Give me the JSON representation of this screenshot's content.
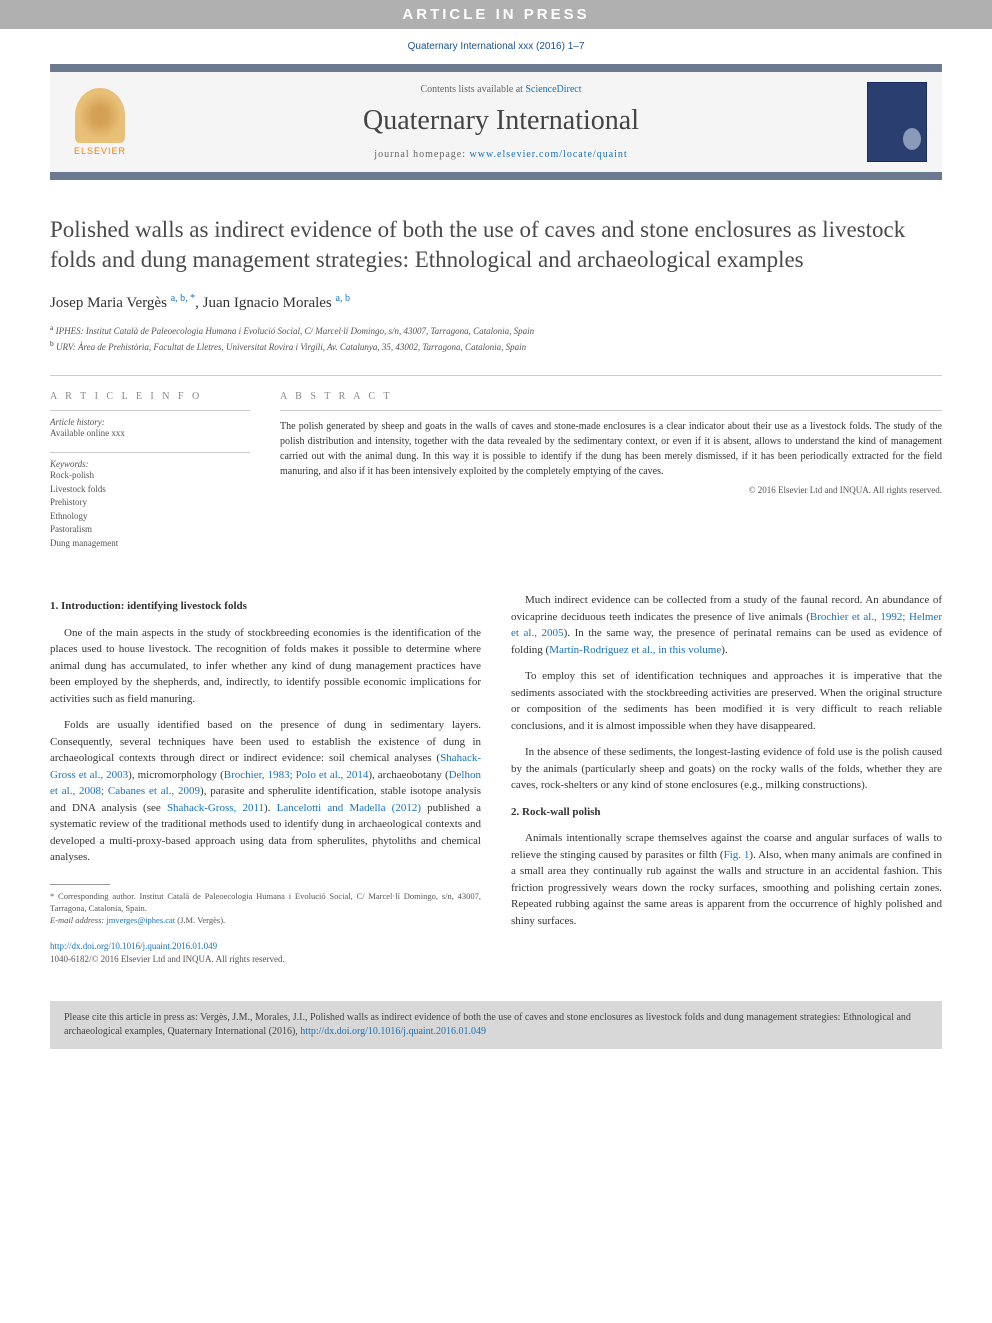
{
  "banner": "ARTICLE IN PRESS",
  "topCite": "Quaternary International xxx (2016) 1–7",
  "header": {
    "contentsPrefix": "Contents lists available at ",
    "contentsLink": "ScienceDirect",
    "journalName": "Quaternary International",
    "homepagePrefix": "journal homepage: ",
    "homepageUrl": "www.elsevier.com/locate/quaint",
    "publisherLogo": "ELSEVIER"
  },
  "title": "Polished walls as indirect evidence of both the use of caves and stone enclosures as livestock folds and dung management strategies: Ethnological and archaeological examples",
  "authors": {
    "a1name": "Josep Maria Vergès ",
    "a1sup": "a, b, *",
    "sep": ", ",
    "a2name": "Juan Ignacio Morales ",
    "a2sup": "a, b"
  },
  "affiliations": {
    "a": "IPHES: Institut Català de Paleoecologia Humana i Evolució Social, C/ Marcel·lí Domingo, s/n, 43007, Tarragona, Catalonia, Spain",
    "b": "URV: Àrea de Prehistòria, Facultat de Lletres, Universitat Rovira i Virgili, Av. Catalunya, 35, 43002, Tarragona, Catalonia, Spain"
  },
  "info": {
    "articleInfoHeading": "A R T I C L E   I N F O",
    "historyLabel": "Article history:",
    "historyText": "Available online xxx",
    "keywordsLabel": "Keywords:",
    "keywords": [
      "Rock-polish",
      "Livestock folds",
      "Prehistory",
      "Ethnology",
      "Pastoralism",
      "Dung management"
    ]
  },
  "abstract": {
    "heading": "A B S T R A C T",
    "text": "The polish generated by sheep and goats in the walls of caves and stone-made enclosures is a clear indicator about their use as a livestock folds. The study of the polish distribution and intensity, together with the data revealed by the sedimentary context, or even if it is absent, allows to understand the kind of management carried out with the animal dung. In this way it is possible to identify if the dung has been merely dismissed, if it has been periodically extracted for the field manuring, and also if it has been intensively exploited by the completely emptying of the caves.",
    "copyright": "© 2016 Elsevier Ltd and INQUA. All rights reserved."
  },
  "sections": {
    "s1heading": "1.  Introduction: identifying livestock folds",
    "s1p1": "One of the main aspects in the study of stockbreeding economies is the identification of the places used to house livestock. The recognition of folds makes it possible to determine where animal dung has accumulated, to infer whether any kind of dung management practices have been employed by the shepherds, and, indirectly, to identify possible economic implications for activities such as field manuring.",
    "s1p2a": "Folds are usually identified based on the presence of dung in sedimentary layers. Consequently, several techniques have been used to establish the existence of dung in archaeological contexts through direct or indirect evidence: soil chemical analyses (",
    "s1p2_r1": "Shahack-Gross et al., 2003",
    "s1p2b": "), micromorphology (",
    "s1p2_r2": "Brochier, 1983; Polo et al., 2014",
    "s1p2c": "), archaeobotany (",
    "s1p2_r3": "Delhon et al., 2008; Cabanes et al., 2009",
    "s1p2d": "), parasite and spherulite identification, stable isotope analysis and DNA analysis (see ",
    "s1p2_r4": "Shahack-Gross, 2011",
    "s1p2e": "). ",
    "s1p2_r5": "Lancelotti and Madella (2012)",
    "s1p2f": " published a systematic review of the traditional methods used to identify dung in archaeological contexts and developed a multi-proxy-based approach using data from spherulites, phytoliths and chemical analyses.",
    "s1p3a": "Much indirect evidence can be collected from a study of the faunal record. An abundance of ovicaprine deciduous teeth indicates the presence of live animals (",
    "s1p3_r1": "Brochier et al., 1992; Helmer et al., 2005",
    "s1p3b": "). In the same way, the presence of perinatal remains can be used as evidence of folding (",
    "s1p3_r2": "Martín-Rodríguez et al., in this volume",
    "s1p3c": ").",
    "s1p4": "To employ this set of identification techniques and approaches it is imperative that the sediments associated with the stockbreeding activities are preserved. When the original structure or composition of the sediments has been modified it is very difficult to reach reliable conclusions, and it is almost impossible when they have disappeared.",
    "s1p5": "In the absence of these sediments, the longest-lasting evidence of fold use is the polish caused by the animals (particularly sheep and goats) on the rocky walls of the folds, whether they are caves, rock-shelters or any kind of stone enclosures (e.g., milking constructions).",
    "s2heading": "2.  Rock-wall polish",
    "s2p1a": "Animals intentionally scrape themselves against the coarse and angular surfaces of walls to relieve the stinging caused by parasites or filth (",
    "s2p1_r1": "Fig. 1",
    "s2p1b": "). Also, when many animals are confined in a small area they continually rub against the walls and structure in an accidental fashion. This friction progressively wears down the rocky surfaces, smoothing and polishing certain zones. Repeated rubbing against the same areas is apparent from the occurrence of highly polished and shiny surfaces."
  },
  "footnote": {
    "corr": "* Corresponding author. Institut Català de Paleoecologia Humana i Evolució Social, C/ Marcel·lí Domingo, s/n, 43007, Tarragona, Catalonia, Spain.",
    "emailLabel": "E-mail address: ",
    "email": "jmverges@iphes.cat",
    "emailSuffix": " (J.M. Vergès)."
  },
  "doi": {
    "url": "http://dx.doi.org/10.1016/j.quaint.2016.01.049",
    "issn": "1040-6182/© 2016 Elsevier Ltd and INQUA. All rights reserved."
  },
  "citeFooter": {
    "textA": "Please cite this article in press as: Vergès, J.M., Morales, J.I., Polished walls as indirect evidence of both the use of caves and stone enclosures as livestock folds and dung management strategies: Ethnological and archaeological examples, Quaternary International (2016), ",
    "link": "http://dx.doi.org/10.1016/j.quaint.2016.01.049"
  },
  "colors": {
    "bannerBg": "#b0b0b0",
    "borderBar": "#6b7a8f",
    "link": "#1a72b8",
    "footerBg": "#d8d8d8"
  }
}
